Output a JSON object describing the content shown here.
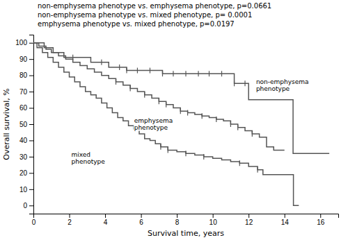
{
  "chart_data": {
    "type": "step",
    "annotations": [
      "non-emphysema phenotype vs. emphysema phenotype, p=0.0661",
      "non-emphysema phenotype vs. mixed phenotype, p= 0.0001",
      "emphysema phenotype vs. mixed phenotype, p=0.0197"
    ],
    "xlabel": "Survival time, years",
    "ylabel": "Overall survival, %",
    "xlim": [
      0,
      17
    ],
    "ylim": [
      -5,
      105
    ],
    "xticks": [
      0,
      2,
      4,
      6,
      8,
      10,
      12,
      14,
      16
    ],
    "yticks": [
      0,
      10,
      20,
      30,
      40,
      50,
      60,
      70,
      80,
      90,
      100
    ],
    "series": [
      {
        "name": "non-emphysema\nphenotype",
        "color": "#555555",
        "x": [
          0,
          0.3,
          0.6,
          0.9,
          1.1,
          1.4,
          1.7,
          2.2,
          2.8,
          3.2,
          3.8,
          4.2,
          4.8,
          5.2,
          5.8,
          6.5,
          7.2,
          7.8,
          8.5,
          9.2,
          9.8,
          10.5,
          11.2,
          11.8,
          12.0,
          13.5,
          14.48,
          16.5
        ],
        "values": [
          100,
          100,
          97,
          97,
          94,
          94,
          91,
          91,
          91,
          88,
          88,
          85,
          85,
          83,
          83,
          83,
          81,
          81,
          81,
          81,
          81,
          81,
          75,
          75,
          65,
          65,
          32,
          32
        ],
        "censor_x": [
          2.2,
          3.8,
          4.8,
          5.2,
          5.8,
          6.5,
          7.2,
          7.8,
          8.5,
          9.2,
          9.8,
          10.5,
          11.2,
          11.8
        ],
        "censor_y": [
          91,
          88,
          85,
          83,
          83,
          83,
          81,
          81,
          81,
          81,
          81,
          81,
          75,
          75
        ]
      },
      {
        "name": "emphysema\nphenotype",
        "color": "#555555",
        "x": [
          0,
          0.3,
          0.7,
          1.0,
          1.4,
          1.8,
          2.2,
          2.6,
          3.0,
          3.4,
          3.8,
          4.2,
          4.6,
          5.0,
          5.4,
          5.8,
          6.2,
          6.6,
          7.0,
          7.4,
          7.8,
          8.2,
          8.6,
          9.0,
          9.4,
          9.8,
          10.2,
          10.6,
          11.0,
          11.4,
          11.8,
          12.2,
          12.6,
          13.0,
          13.4,
          14.0
        ],
        "values": [
          100,
          98,
          96,
          94,
          92,
          90,
          88,
          86,
          84,
          82,
          80,
          78,
          76,
          74,
          72,
          70,
          68,
          66,
          64,
          62,
          60,
          58,
          57,
          56,
          55,
          54,
          53,
          52,
          50,
          48,
          46,
          44,
          42,
          36,
          34,
          34
        ],
        "censor_x": [
          4.6,
          5.4,
          6.2,
          7.0,
          7.4,
          8.2,
          8.6,
          9.4,
          10.2,
          11.0,
          11.4,
          12.2
        ],
        "censor_y": [
          76,
          72,
          68,
          64,
          62,
          58,
          57,
          55,
          53,
          50,
          48,
          44
        ]
      },
      {
        "name": "mixed\nphenotype",
        "color": "#555555",
        "x": [
          0,
          0.2,
          0.5,
          0.8,
          1.1,
          1.4,
          1.7,
          2.0,
          2.3,
          2.6,
          2.9,
          3.2,
          3.5,
          3.8,
          4.1,
          4.4,
          4.7,
          5.0,
          5.3,
          5.6,
          5.9,
          6.2,
          6.5,
          6.8,
          7.1,
          7.5,
          8.0,
          8.5,
          9.0,
          9.5,
          10.0,
          10.5,
          11.0,
          11.5,
          12.0,
          12.5,
          12.8,
          13.5,
          14.0,
          14.5,
          14.8
        ],
        "values": [
          100,
          97,
          94,
          91,
          88,
          85,
          82,
          79,
          76,
          73,
          70,
          68,
          66,
          63,
          60,
          57,
          54,
          52,
          49,
          47,
          44,
          41,
          40,
          38,
          36,
          34,
          33,
          32,
          31,
          30,
          29,
          28,
          27,
          26,
          24,
          22,
          19,
          19,
          19,
          0,
          0
        ],
        "censor_x": [
          7.1,
          7.5,
          8.5,
          9.5,
          11.5,
          12.5
        ],
        "censor_y": [
          36,
          34,
          32,
          30,
          26,
          22
        ]
      }
    ]
  }
}
